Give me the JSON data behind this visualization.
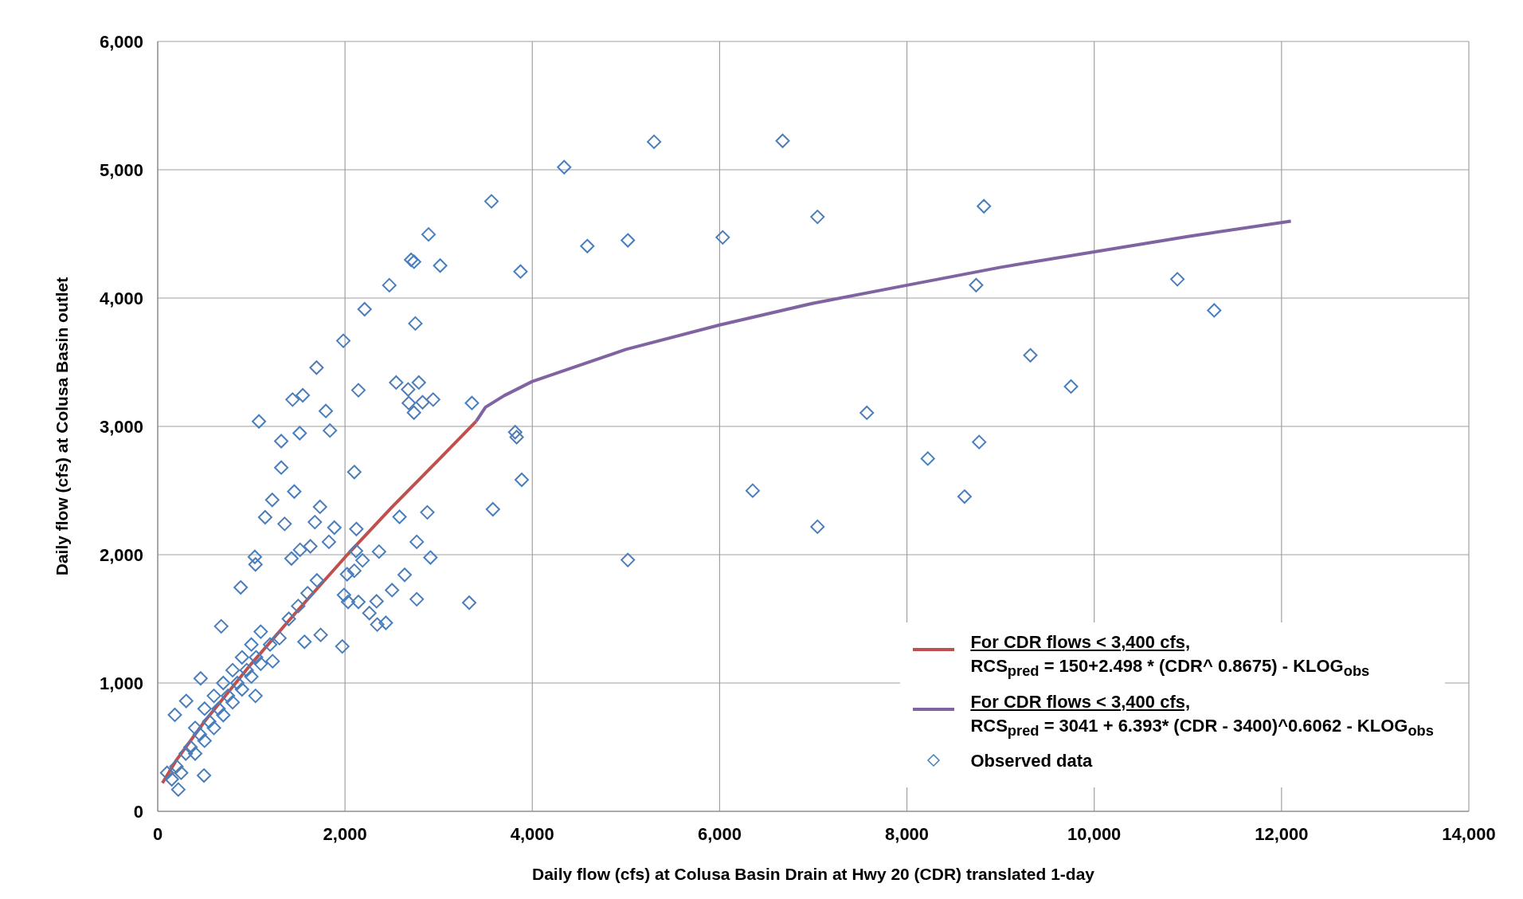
{
  "chart_data": {
    "type": "scatter",
    "xlabel": "Daily flow (cfs) at Colusa Basin Drain at Hwy 20 (CDR) translated 1-day",
    "ylabel": "Daily flow (cfs) at Colusa Basin outlet",
    "xlim": [
      0,
      14000
    ],
    "xticks": [
      0,
      {
        "value": 2000,
        "label": "2,000"
      },
      {
        "value": 4000,
        "label": "4,000"
      },
      {
        "value": 6000,
        "label": "6,000"
      },
      {
        "value": 8000,
        "label": "8,000"
      },
      {
        "value": 10000,
        "label": "10,000"
      },
      {
        "value": 12000,
        "label": "12,000"
      },
      {
        "value": 14000,
        "label": "14,000"
      }
    ],
    "ylim": [
      0,
      6000
    ],
    "yticks": [
      0,
      {
        "value": 1000,
        "label": "1,000"
      },
      {
        "value": 2000,
        "label": "2,000"
      },
      {
        "value": 3000,
        "label": "3,000"
      },
      {
        "value": 4000,
        "label": "4,000"
      },
      {
        "value": 5000,
        "label": "5,000"
      },
      {
        "value": 6000,
        "label": "6,000"
      }
    ],
    "grid": true,
    "legend": "bottom right",
    "marker": "diamond",
    "series": [
      {
        "type": "line",
        "name": "For CDR flows < 3,400 cfs,\nRCS$_{pred}$ = 150+2.498 * (CDR^ 0.8675) - KLOG$_{obs}$",
        "color": "#c0504d",
        "marker": "none",
        "x": [
          50,
          200,
          500,
          1000,
          1500,
          2000,
          2500,
          3000,
          3400
        ],
        "values": [
          220,
          400,
          700,
          1150,
          1570,
          1980,
          2370,
          2740,
          3040
        ]
      },
      {
        "type": "line",
        "name": "For CDR flows < 3,400 cfs,\nRCS$_{pred}$ = 3041 + 6.393* (CDR - 3400)^0.6062 - KLOG$_{obs}$",
        "color": "#8064a2",
        "marker": "none",
        "x": [
          3400,
          3500,
          3700,
          4000,
          5000,
          6000,
          7000,
          8000,
          9000,
          10000,
          11000,
          12100
        ],
        "values": [
          3040,
          3150,
          3240,
          3350,
          3600,
          3790,
          3960,
          4100,
          4240,
          4360,
          4480,
          4600
        ]
      },
      {
        "name": "Observed data",
        "color": "#4a7ebb",
        "x": [
          100,
          150,
          200,
          250,
          300,
          350,
          400,
          400,
          450,
          500,
          500,
          550,
          600,
          600,
          650,
          700,
          700,
          750,
          800,
          800,
          850,
          900,
          900,
          950,
          1000,
          1000,
          1050,
          1100,
          1100,
          1200,
          1300,
          1400,
          1500,
          1600,
          1700,
          220,
          183,
          304,
          458,
          494,
          678,
          1044,
          1227,
          1740,
          1567,
          1971,
          4340,
          5300,
          6673,
          3564,
          2892,
          5020,
          4587,
          6033,
          7045,
          8822,
          3874,
          3016,
          2706,
          2737,
          8739,
          10888,
          11281,
          9318,
          9752,
          7572,
          8223,
          8771,
          8615,
          6353,
          7045,
          5020,
          3355,
          3817,
          3887,
          3579,
          3326,
          3833,
          2473,
          2209,
          2751,
          1982,
          1696,
          1440,
          1549,
          1795,
          1081,
          2143,
          2546,
          2674,
          2788,
          2941,
          2681,
          2828,
          2736,
          1319,
          1516,
          1839,
          1319,
          2099,
          1458,
          1223,
          1733,
          1147,
          1355,
          1678,
          1886,
          2121,
          2582,
          2879,
          1828,
          2766,
          2912,
          2363,
          2637,
          2766,
          2502,
          2337,
          2260,
          2436,
          2344,
          1630,
          1520,
          1428,
          1037,
          1044,
          886,
          2187,
          2099,
          2022,
          2117,
          1989,
          2033,
          2143
        ],
        "values": [
          300,
          250,
          350,
          300,
          450,
          500,
          450,
          650,
          600,
          550,
          800,
          700,
          650,
          900,
          800,
          750,
          1000,
          900,
          850,
          1100,
          1000,
          950,
          1200,
          1100,
          1050,
          1300,
          1200,
          1150,
          1400,
          1300,
          1350,
          1500,
          1600,
          1700,
          1800,
          170,
          752,
          860,
          1036,
          279,
          1442,
          900,
          1170,
          1375,
          1321,
          1285,
          5020,
          5218,
          5225,
          4754,
          4496,
          4450,
          4405,
          4473,
          4633,
          4716,
          4207,
          4253,
          4298,
          4283,
          4101,
          4147,
          3904,
          3554,
          3311,
          3106,
          2749,
          2878,
          2453,
          2499,
          2218,
          1959,
          3182,
          2955,
          2584,
          2354,
          1626,
          2916,
          4100,
          3913,
          3802,
          3667,
          3458,
          3209,
          3242,
          3120,
          3039,
          3282,
          3342,
          3288,
          3342,
          3209,
          3182,
          3188,
          3107,
          2885,
          2947,
          2968,
          2679,
          2644,
          2492,
          2427,
          2373,
          2292,
          2240,
          2254,
          2211,
          2200,
          2295,
          2330,
          2100,
          2100,
          1978,
          2024,
          1843,
          1653,
          1724,
          1637,
          1545,
          1469,
          1456,
          2065,
          2038,
          1970,
          1983,
          1924,
          1745,
          1956,
          1875,
          1848,
          2030,
          1686,
          1632,
          1632
        ]
      }
    ]
  }
}
